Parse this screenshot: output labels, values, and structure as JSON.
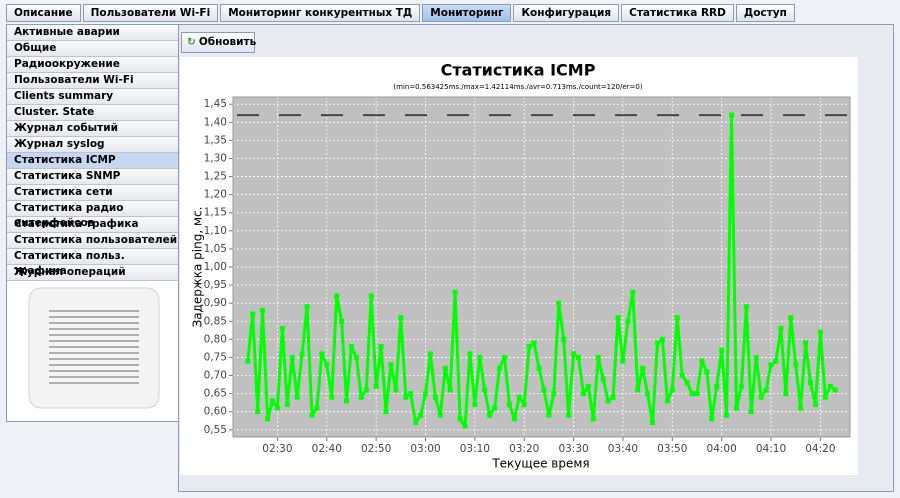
{
  "tabs": [
    "Описание",
    "Пользователи Wi-Fi",
    "Мониторинг конкурентных ТД",
    "Мониторинг",
    "Конфигурация",
    "Статистика RRD",
    "Доступ"
  ],
  "active_tab": 3,
  "menu": [
    "Активные аварии",
    "Общие",
    "Радиоокружение",
    "Пользователи Wi-Fi",
    "Clients summary",
    "Cluster. State",
    "Журнал событий",
    "Журнал syslog",
    "Статистика ICMP",
    "Статистика SNMP",
    "Статистика сети",
    "Статистика радио интерфейсов",
    "Статистика трафика",
    "Статистика пользователей",
    "Статистика польз. трафика",
    "Журнал операций"
  ],
  "active_menu": 8,
  "button": "Обновить",
  "chart_data": {
    "type": "line",
    "title": "Статистика ICMP",
    "subtitle": "(min=0.563425ms./max=1.42114ms./avr=0.713ms./count=120/er=0)",
    "x_label": "Текущее время",
    "y_label": "Задержка ping, мс.",
    "x": [
      "02:24",
      "02:25",
      "02:26",
      "02:27",
      "02:28",
      "02:29",
      "02:30",
      "02:31",
      "02:32",
      "02:33",
      "02:34",
      "02:35",
      "02:36",
      "02:37",
      "02:38",
      "02:39",
      "02:40",
      "02:41",
      "02:42",
      "02:43",
      "02:44",
      "02:45",
      "02:46",
      "02:47",
      "02:48",
      "02:49",
      "02:50",
      "02:51",
      "02:52",
      "02:53",
      "02:54",
      "02:55",
      "02:56",
      "02:57",
      "02:58",
      "02:59",
      "03:00",
      "03:01",
      "03:02",
      "03:03",
      "03:04",
      "03:05",
      "03:06",
      "03:07",
      "03:08",
      "03:09",
      "03:10",
      "03:11",
      "03:12",
      "03:13",
      "03:14",
      "03:15",
      "03:16",
      "03:17",
      "03:18",
      "03:19",
      "03:20",
      "03:21",
      "03:22",
      "03:23",
      "03:24",
      "03:25",
      "03:26",
      "03:27",
      "03:28",
      "03:29",
      "03:30",
      "03:31",
      "03:32",
      "03:33",
      "03:34",
      "03:35",
      "03:36",
      "03:37",
      "03:38",
      "03:39",
      "03:40",
      "03:41",
      "03:42",
      "03:43",
      "03:44",
      "03:45",
      "03:46",
      "03:47",
      "03:48",
      "03:49",
      "03:50",
      "03:51",
      "03:52",
      "03:53",
      "03:54",
      "03:55",
      "03:56",
      "03:57",
      "03:58",
      "03:59",
      "04:00",
      "04:01",
      "04:02",
      "04:03",
      "04:04",
      "04:05",
      "04:06",
      "04:07",
      "04:08",
      "04:09",
      "04:10",
      "04:11",
      "04:12",
      "04:13",
      "04:14",
      "04:15",
      "04:16",
      "04:17",
      "04:18",
      "04:19",
      "04:20",
      "04:21",
      "04:22",
      "04:23"
    ],
    "values": [
      0.74,
      0.87,
      0.6,
      0.88,
      0.58,
      0.63,
      0.61,
      0.83,
      0.62,
      0.75,
      0.64,
      0.76,
      0.89,
      0.59,
      0.61,
      0.76,
      0.73,
      0.64,
      0.92,
      0.85,
      0.63,
      0.78,
      0.75,
      0.64,
      0.66,
      0.92,
      0.67,
      0.78,
      0.6,
      0.73,
      0.66,
      0.86,
      0.64,
      0.65,
      0.57,
      0.59,
      0.65,
      0.76,
      0.64,
      0.59,
      0.72,
      0.66,
      0.93,
      0.58,
      0.56,
      0.76,
      0.62,
      0.75,
      0.66,
      0.59,
      0.61,
      0.72,
      0.75,
      0.62,
      0.58,
      0.64,
      0.62,
      0.78,
      0.79,
      0.72,
      0.66,
      0.59,
      0.65,
      0.9,
      0.8,
      0.59,
      0.76,
      0.75,
      0.65,
      0.67,
      0.58,
      0.75,
      0.69,
      0.63,
      0.64,
      0.86,
      0.74,
      0.85,
      0.93,
      0.66,
      0.72,
      0.65,
      0.57,
      0.79,
      0.8,
      0.63,
      0.66,
      0.86,
      0.7,
      0.68,
      0.65,
      0.65,
      0.74,
      0.71,
      0.58,
      0.67,
      0.77,
      0.59,
      1.42,
      0.61,
      0.67,
      0.89,
      0.6,
      0.75,
      0.64,
      0.66,
      0.73,
      0.74,
      0.83,
      0.65,
      0.86,
      0.73,
      0.61,
      0.79,
      0.68,
      0.62,
      0.82,
      0.64,
      0.67,
      0.66
    ],
    "color": "#00ff00",
    "max_line": 1.42,
    "xlim": [
      "02:21",
      "04:26"
    ],
    "xticks": [
      "02:30",
      "02:40",
      "02:50",
      "03:00",
      "03:10",
      "03:20",
      "03:30",
      "03:40",
      "03:50",
      "04:00",
      "04:10",
      "04:20"
    ],
    "ylim": [
      0.53,
      1.47
    ],
    "yticks": [
      {
        "value": 0.55,
        "label": "0,55"
      },
      {
        "value": 0.6,
        "label": "0,60"
      },
      {
        "value": 0.65,
        "label": "0,65"
      },
      {
        "value": 0.7,
        "label": "0,70"
      },
      {
        "value": 0.75,
        "label": "0,75"
      },
      {
        "value": 0.8,
        "label": "0,80"
      },
      {
        "value": 0.85,
        "label": "0,85"
      },
      {
        "value": 0.9,
        "label": "0,90"
      },
      {
        "value": 0.95,
        "label": "0,95"
      },
      {
        "value": 1.0,
        "label": "1,00"
      },
      {
        "value": 1.05,
        "label": "1,05"
      },
      {
        "value": 1.1,
        "label": "1,10"
      },
      {
        "value": 1.15,
        "label": "1,15"
      },
      {
        "value": 1.2,
        "label": "1,20"
      },
      {
        "value": 1.25,
        "label": "1,25"
      },
      {
        "value": 1.3,
        "label": "1,30"
      },
      {
        "value": 1.35,
        "label": "1,35"
      },
      {
        "value": 1.4,
        "label": "1,40"
      },
      {
        "value": 1.45,
        "label": "1,45"
      }
    ],
    "grid": true
  }
}
